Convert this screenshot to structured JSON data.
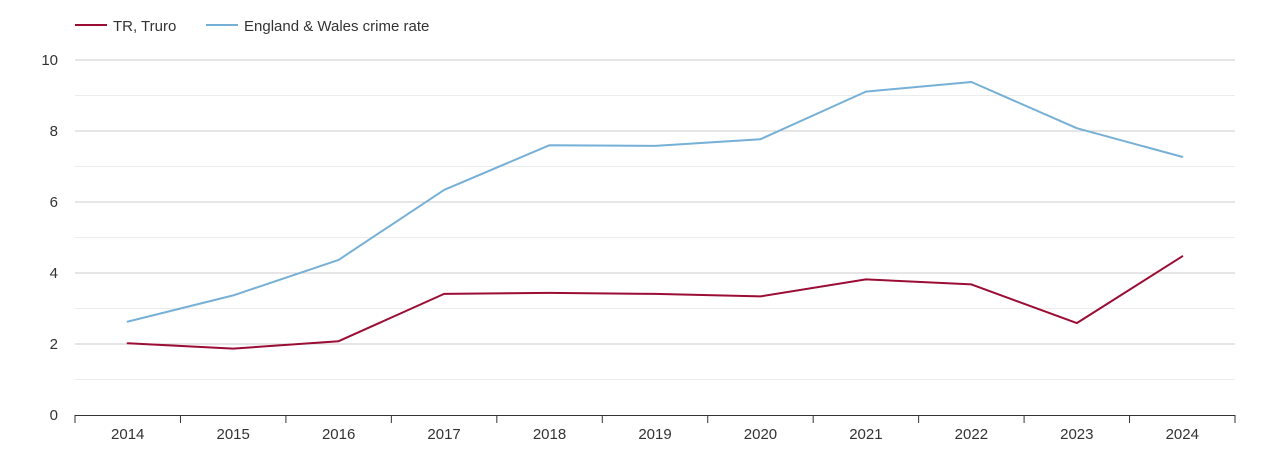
{
  "chart_data": {
    "type": "line",
    "title": "",
    "xlabel": "",
    "ylabel": "",
    "categories": [
      "2014",
      "2015",
      "2016",
      "2017",
      "2018",
      "2019",
      "2020",
      "2021",
      "2022",
      "2023",
      "2024"
    ],
    "ylim": [
      0,
      10
    ],
    "yticks": [
      0,
      2,
      4,
      6,
      8,
      10
    ],
    "yticks_labels": [
      "0",
      "2",
      "4",
      "6",
      "8",
      "10"
    ],
    "minor_grid": true,
    "legend_position": "top-left",
    "series": [
      {
        "name": "TR, Truro",
        "color": "#9b0d34",
        "values": [
          2.02,
          1.87,
          2.08,
          3.41,
          3.44,
          3.41,
          3.34,
          3.82,
          3.68,
          2.59,
          4.47
        ]
      },
      {
        "name": "England & Wales crime rate",
        "color": "#77b0d6",
        "values": [
          2.63,
          3.37,
          4.37,
          6.34,
          7.6,
          7.58,
          7.77,
          9.11,
          9.38,
          8.08,
          7.27
        ]
      }
    ]
  }
}
